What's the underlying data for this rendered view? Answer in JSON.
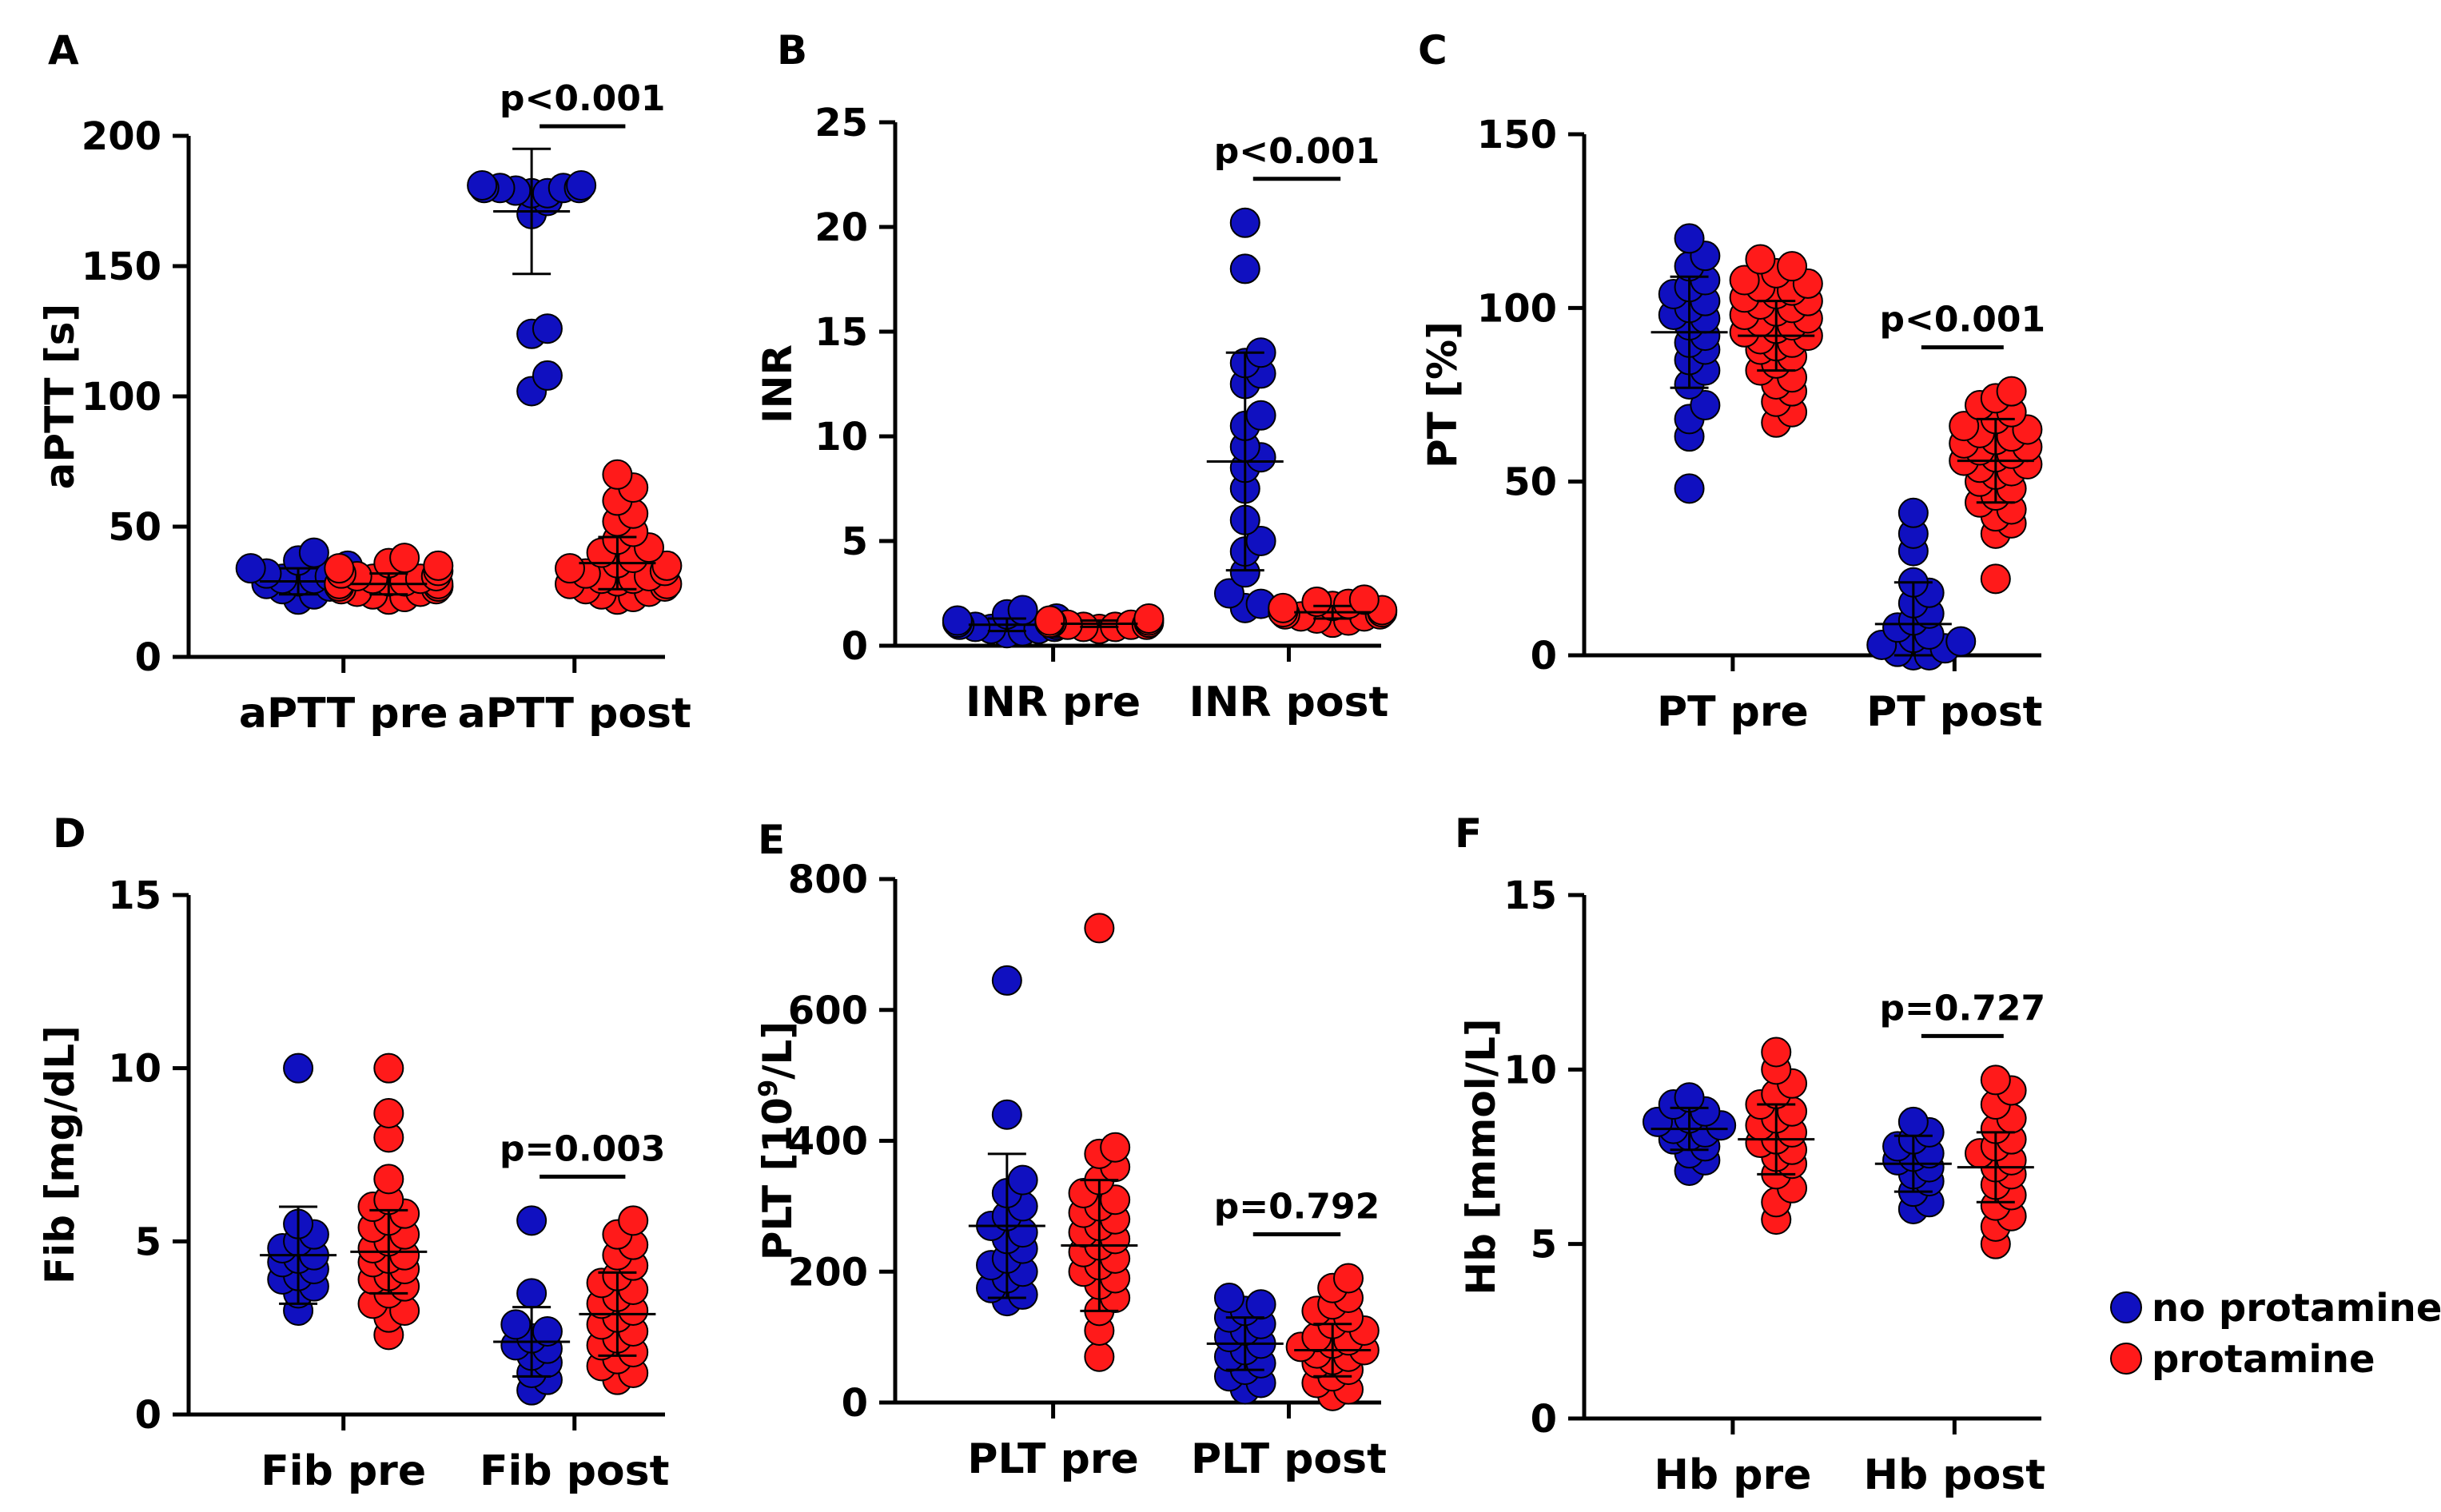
{
  "colors": {
    "no_protamine": "#1010c0",
    "protamine": "#ff1a1a",
    "axis": "#000000"
  },
  "legend": {
    "position": "bottom-right",
    "items": [
      "no protamine",
      "protamine"
    ]
  },
  "chart_data": [
    {
      "type": "scatter",
      "panel": "A",
      "ylabel": "aPTT [s]",
      "ylim": [
        0,
        200
      ],
      "yticks": [
        0,
        50,
        100,
        150,
        200
      ],
      "categories": [
        "aPTT pre",
        "aPTT post"
      ],
      "series": [
        {
          "name": "no protamine",
          "values": [
            [
              22,
              24,
              26,
              27,
              28,
              29,
              30,
              30,
              31,
              32,
              33,
              34,
              35,
              37,
              40
            ],
            [
              102,
              108,
              124,
              126,
              170,
              175,
              178,
              178,
              179,
              180,
              180,
              180,
              180,
              181,
              181
            ]
          ],
          "mean": [
            29,
            171
          ],
          "sd": [
            5,
            24
          ]
        },
        {
          "name": "protamine",
          "values": [
            [
              22,
              23,
              24,
              25,
              25,
              26,
              26,
              27,
              27,
              27,
              28,
              28,
              28,
              29,
              29,
              30,
              30,
              31,
              31,
              32,
              33,
              34,
              35,
              36,
              38
            ],
            [
              22,
              23,
              24,
              25,
              26,
              27,
              28,
              28,
              29,
              30,
              30,
              31,
              32,
              33,
              34,
              35,
              36,
              38,
              40,
              42,
              45,
              48,
              52,
              55,
              60,
              65,
              70
            ]
          ],
          "mean": [
            28,
            36
          ],
          "sd": [
            4,
            10
          ]
        }
      ],
      "annotation": {
        "text": "p<0.001",
        "group": 1
      }
    },
    {
      "type": "scatter",
      "panel": "B",
      "ylabel": "INR",
      "ylim": [
        0,
        25
      ],
      "yticks": [
        0,
        5,
        10,
        15,
        20,
        25
      ],
      "categories": [
        "INR pre",
        "INR post"
      ],
      "series": [
        {
          "name": "no protamine",
          "values": [
            [
              0.6,
              0.7,
              0.8,
              0.8,
              0.9,
              0.9,
              1.0,
              1.0,
              1.1,
              1.1,
              1.2,
              1.3,
              1.5,
              1.7
            ],
            [
              1.8,
              2.0,
              2.5,
              3.5,
              4.5,
              5.0,
              6.0,
              7.5,
              8.5,
              9.0,
              9.5,
              10.5,
              11.0,
              12.5,
              13.0,
              13.5,
              14.0,
              18.0,
              20.2
            ]
          ],
          "mean": [
            1.0,
            8.8
          ],
          "sd": [
            0.3,
            5.2
          ]
        },
        {
          "name": "protamine",
          "values": [
            [
              0.8,
              0.9,
              0.9,
              1.0,
              1.0,
              1.0,
              1.1,
              1.1,
              1.1,
              1.2,
              1.2,
              1.3
            ],
            [
              1.1,
              1.2,
              1.3,
              1.4,
              1.4,
              1.5,
              1.5,
              1.6,
              1.6,
              1.7,
              1.8,
              1.9,
              2.0,
              2.1,
              2.2
            ]
          ],
          "mean": [
            1.05,
            1.6
          ],
          "sd": [
            0.15,
            0.3
          ]
        }
      ],
      "annotation": {
        "text": "p<0.001",
        "group": 1
      }
    },
    {
      "type": "scatter",
      "panel": "C",
      "ylabel": "PT [%]",
      "ylim": [
        0,
        150
      ],
      "yticks": [
        0,
        50,
        100,
        150
      ],
      "categories": [
        "PT pre",
        "PT post"
      ],
      "series": [
        {
          "name": "no protamine",
          "values": [
            [
              48,
              63,
              68,
              72,
              78,
              82,
              85,
              88,
              90,
              92,
              95,
              97,
              98,
              100,
              102,
              104,
              106,
              108,
              112,
              115,
              120
            ],
            [
              0,
              0,
              1,
              2,
              3,
              4,
              5,
              6,
              8,
              10,
              12,
              15,
              18,
              21,
              30,
              35,
              41
            ]
          ],
          "mean": [
            93,
            9
          ],
          "sd": [
            16,
            12
          ]
        },
        {
          "name": "protamine",
          "values": [
            [
              67,
              70,
              73,
              76,
              78,
              80,
              82,
              84,
              86,
              88,
              89,
              90,
              91,
              92,
              93,
              94,
              95,
              96,
              97,
              98,
              99,
              100,
              101,
              102,
              103,
              104,
              105,
              106,
              107,
              108,
              110,
              112,
              114
            ],
            [
              22,
              35,
              38,
              40,
              42,
              44,
              46,
              48,
              50,
              52,
              53,
              54,
              55,
              56,
              57,
              58,
              59,
              60,
              61,
              62,
              63,
              64,
              65,
              66,
              68,
              70,
              72,
              74,
              76
            ]
          ],
          "mean": [
            92,
            56
          ],
          "sd": [
            10,
            12
          ]
        }
      ],
      "annotation": {
        "text": "p<0.001",
        "group": 1
      }
    },
    {
      "type": "scatter",
      "panel": "D",
      "ylabel": "Fib [mg/dL]",
      "ylim": [
        0,
        15
      ],
      "yticks": [
        0,
        5,
        10,
        15
      ],
      "categories": [
        "Fib pre",
        "Fib post"
      ],
      "series": [
        {
          "name": "no protamine",
          "values": [
            [
              3.0,
              3.5,
              3.7,
              3.9,
              4.0,
              4.2,
              4.4,
              4.5,
              4.6,
              4.8,
              5.0,
              5.2,
              5.5,
              10.0
            ],
            [
              0.7,
              1.0,
              1.2,
              1.5,
              1.7,
              1.9,
              2.0,
              2.2,
              2.4,
              2.6,
              3.5,
              5.6
            ]
          ],
          "mean": [
            4.6,
            2.1
          ],
          "sd": [
            1.4,
            1.0
          ]
        },
        {
          "name": "protamine",
          "values": [
            [
              2.3,
              2.8,
              3.0,
              3.2,
              3.5,
              3.7,
              3.9,
              4.0,
              4.2,
              4.4,
              4.5,
              4.6,
              4.8,
              5.0,
              5.2,
              5.4,
              5.6,
              5.8,
              6.0,
              6.2,
              6.8,
              8.0,
              8.7,
              10.0
            ],
            [
              1.0,
              1.2,
              1.4,
              1.6,
              1.8,
              2.0,
              2.2,
              2.4,
              2.6,
              2.8,
              3.0,
              3.2,
              3.4,
              3.6,
              3.8,
              4.0,
              4.3,
              4.6,
              4.9,
              5.2,
              5.6
            ]
          ],
          "mean": [
            4.7,
            2.9
          ],
          "sd": [
            1.2,
            1.2
          ]
        }
      ],
      "annotation": {
        "text": "p=0.003",
        "group": 1
      }
    },
    {
      "type": "scatter",
      "panel": "E",
      "ylabel": "PLT [10",
      "ylabel_sup": "9",
      "ylabel_end": "/L]",
      "ylim": [
        0,
        800
      ],
      "yticks": [
        0,
        200,
        400,
        600,
        800
      ],
      "categories": [
        "PLT pre",
        "PLT post"
      ],
      "series": [
        {
          "name": "no protamine",
          "values": [
            [
              155,
              165,
              175,
              190,
              200,
              210,
              220,
              235,
              250,
              260,
              270,
              285,
              300,
              320,
              340,
              440,
              645
            ],
            [
              20,
              30,
              40,
              50,
              60,
              70,
              80,
              90,
              100,
              110,
              120,
              130,
              140,
              150,
              160
            ]
          ],
          "mean": [
            270,
            90
          ],
          "sd": [
            110,
            40
          ]
        },
        {
          "name": "protamine",
          "values": [
            [
              70,
              110,
              140,
              160,
              180,
              190,
              200,
              210,
              220,
              230,
              240,
              250,
              260,
              270,
              280,
              290,
              300,
              310,
              320,
              340,
              360,
              380,
              390,
              725
            ],
            [
              10,
              20,
              30,
              40,
              50,
              60,
              65,
              70,
              75,
              80,
              85,
              90,
              95,
              100,
              110,
              120,
              130,
              140,
              150,
              160,
              175,
              190
            ]
          ],
          "mean": [
            240,
            80
          ],
          "sd": [
            100,
            40
          ]
        }
      ],
      "annotation": {
        "text": "p=0.792",
        "group": 1
      }
    },
    {
      "type": "scatter",
      "panel": "F",
      "ylabel": "Hb [mmol/L]",
      "ylim": [
        0,
        15
      ],
      "yticks": [
        0,
        5,
        10,
        15
      ],
      "categories": [
        "Hb pre",
        "Hb post"
      ],
      "series": [
        {
          "name": "no protamine",
          "values": [
            [
              7.1,
              7.4,
              7.6,
              7.8,
              8.0,
              8.1,
              8.2,
              8.3,
              8.4,
              8.5,
              8.6,
              8.8,
              9.0,
              9.2
            ],
            [
              6.0,
              6.2,
              6.5,
              6.8,
              7.0,
              7.2,
              7.4,
              7.5,
              7.6,
              7.8,
              8.0,
              8.2,
              8.5
            ]
          ],
          "mean": [
            8.3,
            7.3
          ],
          "sd": [
            0.6,
            0.8
          ]
        },
        {
          "name": "protamine",
          "values": [
            [
              5.7,
              6.2,
              6.6,
              7.0,
              7.3,
              7.5,
              7.7,
              7.9,
              8.0,
              8.2,
              8.4,
              8.6,
              8.8,
              9.0,
              9.3,
              9.6,
              10.0,
              10.5
            ],
            [
              5.0,
              5.5,
              5.8,
              6.1,
              6.4,
              6.7,
              7.0,
              7.2,
              7.4,
              7.6,
              7.8,
              8.0,
              8.3,
              8.6,
              9.0,
              9.4,
              9.7
            ]
          ],
          "mean": [
            8.0,
            7.2
          ],
          "sd": [
            1.0,
            1.0
          ]
        }
      ],
      "annotation": {
        "text": "p=0.727",
        "group": 1
      }
    }
  ]
}
